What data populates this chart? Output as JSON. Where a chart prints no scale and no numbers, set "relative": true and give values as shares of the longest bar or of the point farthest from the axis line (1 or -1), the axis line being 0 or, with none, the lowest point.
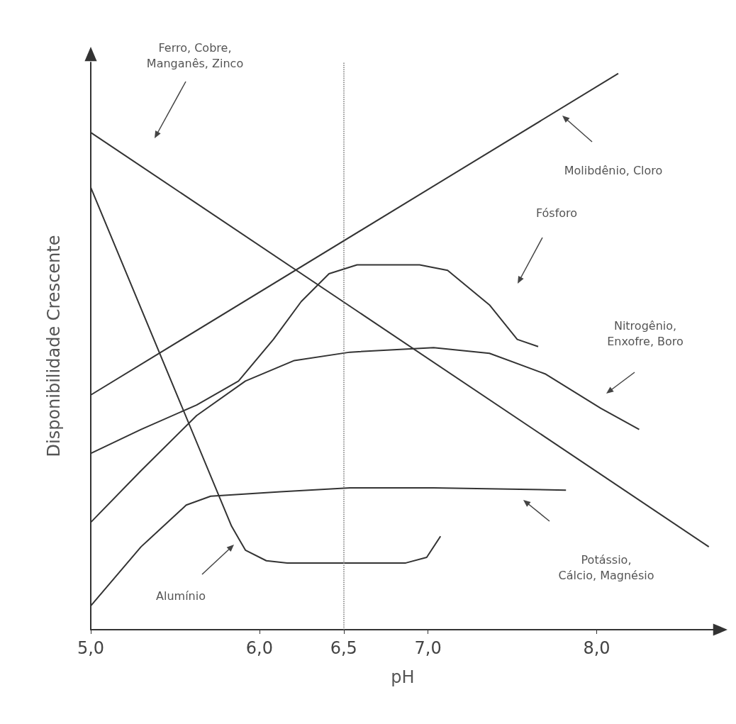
{
  "chart_data": {
    "type": "line",
    "relative": true,
    "xlabel": "pH",
    "ylabel": "Disponibilidade Crescente",
    "marker": "none",
    "xlim": [
      5,
      8.7
    ],
    "xticks": [
      {
        "value": 5,
        "label": "5,0"
      },
      {
        "value": 6,
        "label": "6,0"
      },
      {
        "value": 6.5,
        "label": "6,5"
      },
      {
        "value": 7,
        "label": "7,0"
      },
      {
        "value": 8,
        "label": "8,0"
      }
    ],
    "ref_lines": [
      {
        "axis": "x",
        "value": 6.5,
        "line_style": "dotted",
        "color": "#777777"
      }
    ],
    "series": [
      {
        "color": "#333333",
        "x": [
          5.0,
          8.665
        ],
        "values": [
          0.894,
          0.149
        ]
      },
      {
        "color": "#333333",
        "x": [
          5.0,
          8.128
        ],
        "values": [
          0.422,
          1.0
        ]
      },
      {
        "color": "#333333",
        "x": [
          5.0,
          5.835,
          5.917,
          6.041,
          6.165,
          6.868,
          6.992,
          7.074
        ],
        "values": [
          0.795,
          0.186,
          0.143,
          0.124,
          0.12,
          0.12,
          0.13,
          0.168
        ]
      },
      {
        "color": "#333333",
        "x": [
          5.0,
          5.298,
          5.566,
          5.711,
          6.124,
          6.537,
          7.033,
          7.818
        ],
        "values": [
          0.043,
          0.149,
          0.224,
          0.24,
          0.248,
          0.255,
          0.255,
          0.251
        ]
      },
      {
        "color": "#333333",
        "x": [
          5.0,
          5.298,
          5.628,
          5.876,
          6.083,
          6.248,
          6.413,
          6.579,
          6.95,
          7.116,
          7.364,
          7.529,
          7.653
        ],
        "values": [
          0.317,
          0.36,
          0.404,
          0.447,
          0.522,
          0.59,
          0.64,
          0.656,
          0.656,
          0.646,
          0.584,
          0.522,
          0.509
        ]
      },
      {
        "color": "#333333",
        "x": [
          5.0,
          5.298,
          5.628,
          5.917,
          6.207,
          6.537,
          7.033,
          7.364,
          7.694,
          8.025,
          8.252
        ],
        "values": [
          0.193,
          0.286,
          0.385,
          0.447,
          0.484,
          0.499,
          0.507,
          0.497,
          0.46,
          0.398,
          0.36
        ]
      }
    ],
    "annotations": [
      "Ferro, Cobre,\nManganês, Zinco",
      "Molibdênio, Cloro",
      "Fósforo",
      "Nitrogênio,\nEnxofre, Boro",
      "Potássio,\nCálcio, Magnésio",
      "Alumínio"
    ]
  }
}
